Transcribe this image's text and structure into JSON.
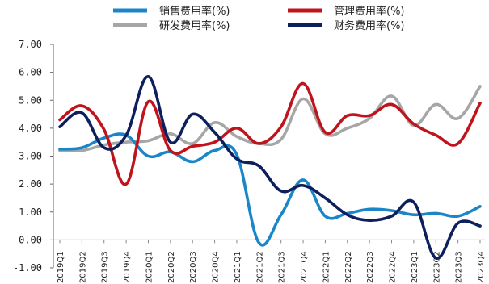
{
  "chart_data": {
    "type": "line",
    "title": "",
    "xlabel": "",
    "ylabel": "",
    "ylim": [
      -1.0,
      7.0
    ],
    "yticks": [
      "7.00",
      "6.00",
      "5.00",
      "4.00",
      "3.00",
      "2.00",
      "1.00",
      "0.00",
      "-1.00"
    ],
    "ytick_values": [
      7,
      6,
      5,
      4,
      3,
      2,
      1,
      0,
      -1
    ],
    "grid": false,
    "legend_position": "top",
    "categories": [
      "2019Q1",
      "2019Q2",
      "2019Q3",
      "2019Q4",
      "2020Q1",
      "2020Q2",
      "2020Q3",
      "2020Q4",
      "2021Q1",
      "2021Q2",
      "2021Q3",
      "2021Q4",
      "2022Q1",
      "2022Q2",
      "2022Q3",
      "2022Q4",
      "2023Q1",
      "2023Q2",
      "2023Q3",
      "2023Q4"
    ],
    "series": [
      {
        "name": "销售费用率(%)",
        "color": "#1a86c8",
        "values": [
          3.25,
          3.3,
          3.65,
          3.75,
          3.0,
          3.15,
          2.8,
          3.2,
          3.05,
          -0.1,
          0.9,
          2.15,
          0.85,
          0.95,
          1.1,
          1.05,
          0.9,
          0.95,
          0.85,
          1.2
        ]
      },
      {
        "name": "管理费用率(%)",
        "color": "#c0141c",
        "values": [
          4.3,
          4.8,
          3.95,
          2.0,
          4.95,
          3.2,
          3.35,
          3.5,
          4.0,
          3.45,
          4.05,
          5.6,
          3.85,
          4.45,
          4.45,
          4.85,
          4.15,
          3.75,
          3.45,
          4.9
        ]
      },
      {
        "name": "研发费用率(%)",
        "color": "#a6a6a6",
        "values": [
          3.2,
          3.2,
          3.4,
          3.5,
          3.55,
          3.8,
          3.45,
          4.2,
          3.7,
          3.45,
          3.6,
          5.05,
          3.8,
          4.0,
          4.35,
          5.15,
          4.1,
          4.85,
          4.35,
          5.5
        ]
      },
      {
        "name": "财务费用率(%)",
        "color": "#0d1f5c",
        "values": [
          4.05,
          4.55,
          3.3,
          3.75,
          5.85,
          3.5,
          4.5,
          3.85,
          2.9,
          2.65,
          1.75,
          1.95,
          1.5,
          0.9,
          0.7,
          0.85,
          1.35,
          -0.65,
          0.6,
          0.5
        ]
      }
    ]
  }
}
